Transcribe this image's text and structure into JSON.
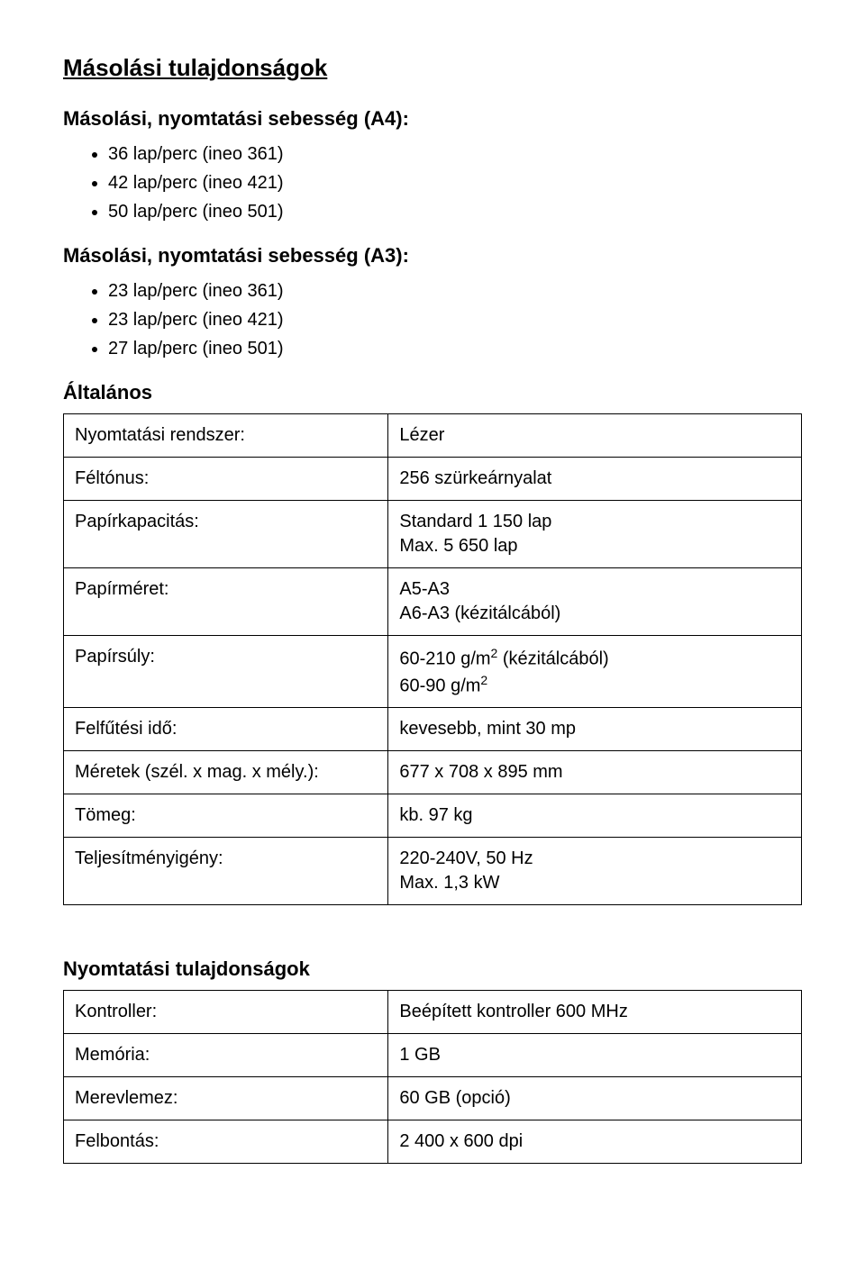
{
  "sections": {
    "copy": {
      "title": "Másolási tulajdonságok",
      "speed_a4": {
        "heading": "Másolási, nyomtatási sebesség (A4):",
        "items": [
          "36 lap/perc (ineo 361)",
          "42 lap/perc (ineo 421)",
          "50 lap/perc (ineo 501)"
        ]
      },
      "speed_a3": {
        "heading": "Másolási, nyomtatási sebesség (A3):",
        "items": [
          "23 lap/perc (ineo 361)",
          "23 lap/perc (ineo 421)",
          "27 lap/perc (ineo 501)"
        ]
      },
      "general_heading": "Általános",
      "general_rows": [
        {
          "label": "Nyomtatási rendszer:",
          "value": "Lézer"
        },
        {
          "label": "Féltónus:",
          "value": "256 szürkeárnyalat"
        },
        {
          "label": "Papírkapacitás:",
          "value": "Standard 1 150 lap\nMax. 5 650 lap"
        },
        {
          "label": "Papírméret:",
          "value": "A5-A3\nA6-A3 (kézitálcából)"
        },
        {
          "label": "Papírsúly:",
          "value_html": "60-210 g/m<sup>2</sup> (kézitálcából)<br>60-90 g/m<sup>2</sup>"
        },
        {
          "label": "Felfűtési idő:",
          "value": "kevesebb, mint 30 mp"
        },
        {
          "label": "Méretek (szél. x mag. x mély.):",
          "value": "677 x 708 x 895 mm"
        },
        {
          "label": "Tömeg:",
          "value": "kb. 97 kg"
        },
        {
          "label": "Teljesítményigény:",
          "value": "220-240V, 50 Hz\nMax. 1,3 kW"
        }
      ]
    },
    "print": {
      "title": "Nyomtatási tulajdonságok",
      "rows": [
        {
          "label": "Kontroller:",
          "value": "Beépített kontroller 600 MHz"
        },
        {
          "label": "Memória:",
          "value": "1 GB"
        },
        {
          "label": "Merevlemez:",
          "value": "60 GB (opció)"
        },
        {
          "label": "Felbontás:",
          "value": "2 400 x 600 dpi"
        }
      ]
    }
  },
  "style": {
    "background_color": "#ffffff",
    "text_color": "#000000",
    "border_color": "#000000",
    "title_fontsize": 26,
    "subheading_fontsize": 22,
    "body_fontsize": 20
  }
}
